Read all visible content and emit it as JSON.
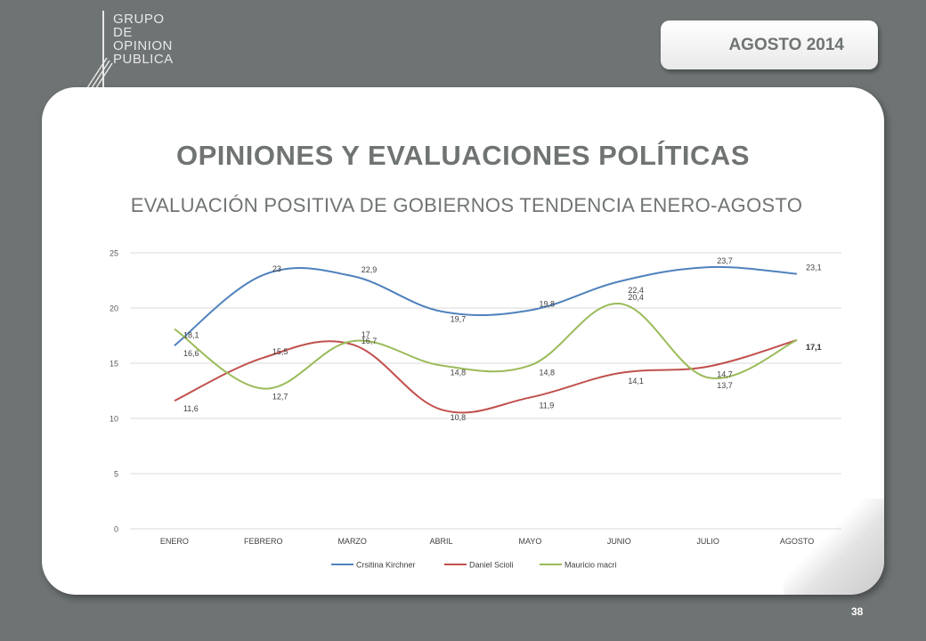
{
  "header": {
    "logo_lines": [
      "GRUPO",
      "DE",
      "OPINION",
      "PUBLICA"
    ],
    "date_label": "AGOSTO 2014"
  },
  "slide": {
    "title": "OPINIONES Y EVALUACIONES POLÍTICAS",
    "subtitle": "EVALUACIÓN POSITIVA DE GOBIERNOS TENDENCIA ENERO-AGOSTO",
    "page_number": "38"
  },
  "colors": {
    "background": "#6e7373",
    "series": [
      "#4f81bd",
      "#c0504d",
      "#9bbb59"
    ]
  },
  "chart_data": {
    "type": "line",
    "title": "",
    "xlabel": "",
    "ylabel": "",
    "ylim": [
      0,
      25
    ],
    "yticks": [
      "0",
      "5",
      "10",
      "15",
      "20",
      "25"
    ],
    "grid": true,
    "legend_position": "bottom",
    "categories": [
      "ENERO",
      "FEBRERO",
      "MARZO",
      "ABRIL",
      "MAYO",
      "JUNIO",
      "JULIO",
      "AGOSTO"
    ],
    "series": [
      {
        "name": "Crsitina Kirchner",
        "values": [
          16.6,
          23,
          22.9,
          19.7,
          19.8,
          22.4,
          23.7,
          23.1
        ],
        "labels": [
          "16,6",
          "23",
          "22,9",
          "19,7",
          "19,8",
          "22,4",
          "23,7",
          "23,1"
        ]
      },
      {
        "name": "Daniel Scioli",
        "values": [
          11.6,
          15.5,
          16.7,
          10.8,
          11.9,
          14.1,
          14.7,
          17.1
        ],
        "labels": [
          "11,6",
          "15,5",
          "16,7",
          "10,8",
          "11,9",
          "14,1",
          "14,7",
          "17,1"
        ]
      },
      {
        "name": "Mauricio macri",
        "values": [
          18.1,
          12.7,
          17,
          14.8,
          14.8,
          20.4,
          13.7,
          17.1
        ],
        "labels": [
          "18,1",
          "12,7",
          "17",
          "14,8",
          "14,8",
          "20,4",
          "13,7",
          "17,1"
        ]
      }
    ]
  }
}
